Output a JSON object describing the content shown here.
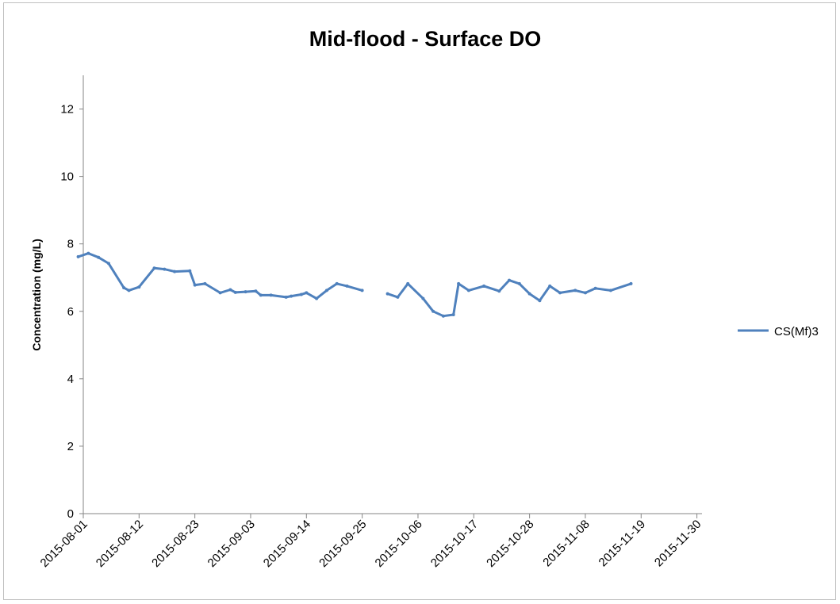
{
  "chart_data": {
    "type": "line",
    "title": "Mid-flood - Surface DO",
    "xlabel": "",
    "ylabel": "Concentration (mg/L)",
    "ylim": [
      0,
      13
    ],
    "y_ticks": [
      0,
      2,
      4,
      6,
      8,
      10,
      12
    ],
    "x_range": [
      "2015-08-01",
      "2015-12-01"
    ],
    "x_tick_labels": [
      "2015-08-01",
      "2015-08-12",
      "2015-08-23",
      "2015-09-03",
      "2015-09-14",
      "2015-09-25",
      "2015-10-06",
      "2015-10-17",
      "2015-10-28",
      "2015-11-08",
      "2015-11-19",
      "2015-11-30"
    ],
    "grid": false,
    "legend_position": "right",
    "color": "#4f81bd",
    "series": [
      {
        "name": "CS(Mf)3",
        "points": [
          [
            "2015-07-31",
            7.62
          ],
          [
            "2015-08-02",
            7.72
          ],
          [
            "2015-08-04",
            7.6
          ],
          [
            "2015-08-06",
            7.42
          ],
          [
            "2015-08-09",
            6.7
          ],
          [
            "2015-08-10",
            6.62
          ],
          [
            "2015-08-12",
            6.72
          ],
          [
            "2015-08-15",
            7.28
          ],
          [
            "2015-08-17",
            7.25
          ],
          [
            "2015-08-19",
            7.18
          ],
          [
            "2015-08-22",
            7.2
          ],
          [
            "2015-08-23",
            6.78
          ],
          [
            "2015-08-25",
            6.82
          ],
          [
            "2015-08-28",
            6.55
          ],
          [
            "2015-08-30",
            6.64
          ],
          [
            "2015-08-31",
            6.56
          ],
          [
            "2015-09-02",
            6.58
          ],
          [
            "2015-09-04",
            6.6
          ],
          [
            "2015-09-05",
            6.48
          ],
          [
            "2015-09-07",
            6.48
          ],
          [
            "2015-09-10",
            6.42
          ],
          [
            "2015-09-11",
            6.45
          ],
          [
            "2015-09-13",
            6.5
          ],
          [
            "2015-09-14",
            6.55
          ],
          [
            "2015-09-16",
            6.38
          ],
          [
            "2015-09-18",
            6.62
          ],
          [
            "2015-09-20",
            6.82
          ],
          [
            "2015-09-22",
            6.75
          ],
          [
            "2015-09-25",
            6.62
          ],
          null,
          [
            "2015-09-30",
            6.52
          ],
          [
            "2015-10-02",
            6.42
          ],
          [
            "2015-10-04",
            6.82
          ],
          [
            "2015-10-07",
            6.38
          ],
          [
            "2015-10-09",
            6.0
          ],
          [
            "2015-10-11",
            5.86
          ],
          [
            "2015-10-13",
            5.9
          ],
          [
            "2015-10-14",
            6.82
          ],
          [
            "2015-10-16",
            6.62
          ],
          [
            "2015-10-19",
            6.75
          ],
          [
            "2015-10-22",
            6.6
          ],
          [
            "2015-10-24",
            6.92
          ],
          [
            "2015-10-26",
            6.82
          ],
          [
            "2015-10-28",
            6.52
          ],
          [
            "2015-10-30",
            6.32
          ],
          [
            "2015-11-01",
            6.75
          ],
          [
            "2015-11-03",
            6.55
          ],
          [
            "2015-11-06",
            6.62
          ],
          [
            "2015-11-08",
            6.55
          ],
          [
            "2015-11-10",
            6.68
          ],
          [
            "2015-11-13",
            6.62
          ],
          [
            "2015-11-17",
            6.82
          ]
        ]
      }
    ]
  }
}
